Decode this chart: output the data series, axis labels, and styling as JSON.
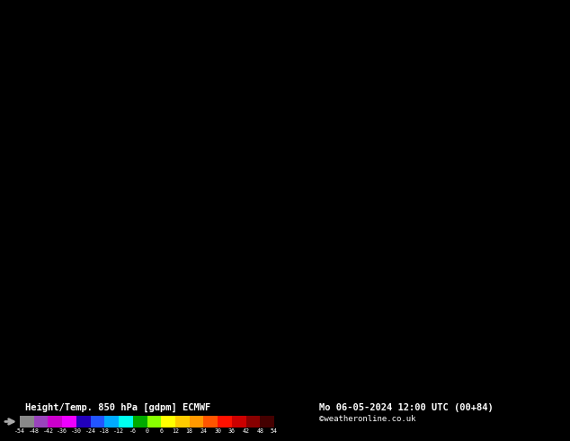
{
  "title_left": "Height/Temp. 850 hPa [gdpm] ECMWF",
  "title_right": "Mo 06-05-2024 12:00 UTC (00+84)",
  "credit": "©weatheronline.co.uk",
  "colorbar_ticks": [
    "-54",
    "-48",
    "-42",
    "-36",
    "-30",
    "-24",
    "-18",
    "-12",
    "-6",
    "0",
    "6",
    "12",
    "18",
    "24",
    "30",
    "36",
    "42",
    "48",
    "54"
  ],
  "colorbar_colors": [
    "#888888",
    "#9944bb",
    "#cc00cc",
    "#ee00ff",
    "#2200bb",
    "#2255ff",
    "#00aaff",
    "#00ffee",
    "#00aa00",
    "#88ff00",
    "#ffff00",
    "#ffcc00",
    "#ff9900",
    "#ff5500",
    "#ff1100",
    "#cc0000",
    "#880000",
    "#440000"
  ],
  "fig_width": 6.34,
  "fig_height": 4.9,
  "dpi": 100,
  "main_bg": "#f5d800",
  "bottom_bg": "#000000",
  "digit_color": "#000000",
  "barb_color": "#000000"
}
